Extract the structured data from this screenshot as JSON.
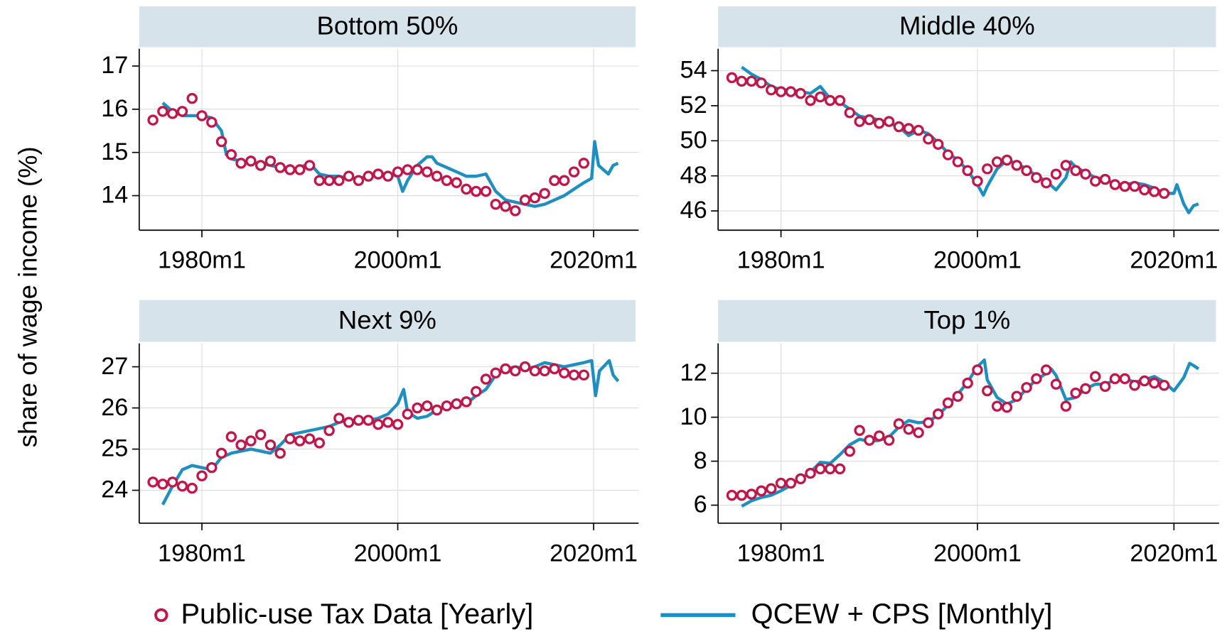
{
  "ylabel": "share of wage income (%)",
  "legend": [
    {
      "name": "Public-use Tax Data [Yearly]",
      "color": "#c0174a",
      "marker": "circle"
    },
    {
      "name": "QCEW + CPS [Monthly]",
      "color": "#1f8fbf",
      "marker": "line"
    }
  ],
  "chart_data": [
    {
      "type": "line",
      "title": "Bottom 50%",
      "xlim": [
        1973.6,
        2024.6
      ],
      "xticks": [
        {
          "value": 1980,
          "label": "1980m1"
        },
        {
          "value": 2000,
          "label": "2000m1"
        },
        {
          "value": 2020,
          "label": "2020m1"
        }
      ],
      "ylim": [
        13.2,
        17.4
      ],
      "yticks": [
        14,
        15,
        16,
        17
      ],
      "grid": true,
      "series": [
        {
          "x": [
            1975,
            1976,
            1977,
            1978,
            1979,
            1980,
            1981,
            1982,
            1983,
            1984,
            1985,
            1986,
            1987,
            1988,
            1989,
            1990,
            1991,
            1992,
            1993,
            1994,
            1995,
            1996,
            1997,
            1998,
            1999,
            2000,
            2001,
            2002,
            2003,
            2004,
            2005,
            2006,
            2007,
            2008,
            2009,
            2010,
            2011,
            2012,
            2013,
            2014,
            2015,
            2016,
            2017,
            2018,
            2019
          ],
          "values": [
            15.75,
            15.95,
            15.9,
            15.95,
            16.25,
            15.85,
            15.7,
            15.25,
            14.95,
            14.75,
            14.8,
            14.7,
            14.8,
            14.65,
            14.6,
            14.6,
            14.7,
            14.35,
            14.35,
            14.35,
            14.45,
            14.35,
            14.45,
            14.5,
            14.45,
            14.55,
            14.6,
            14.6,
            14.55,
            14.45,
            14.35,
            14.3,
            14.15,
            14.1,
            14.1,
            13.8,
            13.75,
            13.65,
            13.9,
            13.95,
            14.05,
            14.35,
            14.35,
            14.55,
            14.75
          ]
        },
        {
          "x": [
            1976,
            1977,
            1978,
            1979,
            1980,
            1981,
            1982,
            1982.5,
            1983,
            1984,
            1985,
            1986,
            1987,
            1988,
            1989,
            1990,
            1991,
            1992,
            1993,
            1994,
            1995,
            1996,
            1997,
            1998,
            1999,
            2000,
            2000.5,
            2001,
            2002,
            2003,
            2003.5,
            2004,
            2005,
            2006,
            2007,
            2008,
            2009,
            2010,
            2011,
            2012,
            2013,
            2014,
            2015,
            2016,
            2017,
            2018,
            2019,
            2019.8,
            2020.1,
            2020.5,
            2021,
            2021.5,
            2022,
            2022.5
          ],
          "values": [
            16.15,
            15.95,
            15.85,
            15.85,
            15.85,
            15.8,
            15.5,
            14.95,
            14.85,
            14.8,
            14.75,
            14.75,
            14.7,
            14.65,
            14.6,
            14.65,
            14.75,
            14.5,
            14.45,
            14.45,
            14.4,
            14.4,
            14.45,
            14.5,
            14.5,
            14.45,
            14.1,
            14.35,
            14.7,
            14.9,
            14.9,
            14.75,
            14.65,
            14.55,
            14.45,
            14.45,
            14.5,
            14.1,
            13.9,
            13.85,
            13.8,
            13.75,
            13.8,
            13.9,
            14.0,
            14.15,
            14.3,
            14.4,
            15.25,
            14.7,
            14.6,
            14.5,
            14.7,
            14.75
          ]
        }
      ]
    },
    {
      "type": "line",
      "title": "Middle 40%",
      "xlim": [
        1973.6,
        2024.6
      ],
      "xticks": [
        {
          "value": 1980,
          "label": "1980m1"
        },
        {
          "value": 2000,
          "label": "2000m1"
        },
        {
          "value": 2020,
          "label": "2020m1"
        }
      ],
      "ylim": [
        44.9,
        55.25
      ],
      "yticks": [
        46,
        48,
        50,
        52,
        54
      ],
      "grid": true,
      "series": [
        {
          "x": [
            1975,
            1976,
            1977,
            1978,
            1979,
            1980,
            1981,
            1982,
            1983,
            1984,
            1985,
            1986,
            1987,
            1988,
            1989,
            1990,
            1991,
            1992,
            1993,
            1994,
            1995,
            1996,
            1997,
            1998,
            1999,
            2000,
            2001,
            2002,
            2003,
            2004,
            2005,
            2006,
            2007,
            2008,
            2009,
            2010,
            2011,
            2012,
            2013,
            2014,
            2015,
            2016,
            2017,
            2018,
            2019
          ],
          "values": [
            53.6,
            53.4,
            53.4,
            53.3,
            52.9,
            52.8,
            52.8,
            52.7,
            52.3,
            52.5,
            52.3,
            52.3,
            51.6,
            51.1,
            51.2,
            51.0,
            51.1,
            50.8,
            50.7,
            50.6,
            50.1,
            49.8,
            49.2,
            48.8,
            48.3,
            47.7,
            48.4,
            48.8,
            48.9,
            48.6,
            48.3,
            47.9,
            47.6,
            48.1,
            48.6,
            48.3,
            48.1,
            47.7,
            47.8,
            47.5,
            47.4,
            47.4,
            47.2,
            47.1,
            47.0
          ]
        },
        {
          "x": [
            1976,
            1977,
            1978,
            1979,
            1980,
            1981,
            1982,
            1983,
            1984,
            1985,
            1986,
            1987,
            1988,
            1989,
            1990,
            1991,
            1992,
            1993,
            1994,
            1995,
            1996,
            1997,
            1998,
            1999,
            2000,
            2000.6,
            2001,
            2002,
            2003,
            2004,
            2005,
            2006,
            2007,
            2008,
            2009,
            2009.5,
            2010,
            2011,
            2012,
            2013,
            2014,
            2015,
            2016,
            2017,
            2018,
            2019,
            2020,
            2020.3,
            2021,
            2021.5,
            2022,
            2022.5
          ],
          "values": [
            54.2,
            53.8,
            53.5,
            53.1,
            52.9,
            52.9,
            52.8,
            52.7,
            53.1,
            52.4,
            52.2,
            51.8,
            51.4,
            51.3,
            51.2,
            51.0,
            50.8,
            50.3,
            50.6,
            50.4,
            49.9,
            49.3,
            48.9,
            48.3,
            47.5,
            46.9,
            47.4,
            48.4,
            48.9,
            48.7,
            48.4,
            48.0,
            47.7,
            47.2,
            47.9,
            48.8,
            48.5,
            48.2,
            47.9,
            47.8,
            47.5,
            47.5,
            47.6,
            47.5,
            47.3,
            47.0,
            47.0,
            47.5,
            46.4,
            45.9,
            46.3,
            46.4
          ]
        }
      ]
    },
    {
      "type": "line",
      "title": "Next 9%",
      "xlim": [
        1973.6,
        2024.6
      ],
      "xticks": [
        {
          "value": 1980,
          "label": "1980m1"
        },
        {
          "value": 2000,
          "label": "2000m1"
        },
        {
          "value": 2020,
          "label": "2020m1"
        }
      ],
      "ylim": [
        23.2,
        27.57
      ],
      "yticks": [
        24,
        25,
        26,
        27
      ],
      "grid": true,
      "series": [
        {
          "x": [
            1975,
            1976,
            1977,
            1978,
            1979,
            1980,
            1981,
            1982,
            1983,
            1984,
            1985,
            1986,
            1987,
            1988,
            1989,
            1990,
            1991,
            1992,
            1993,
            1994,
            1995,
            1996,
            1997,
            1998,
            1999,
            2000,
            2001,
            2002,
            2003,
            2004,
            2005,
            2006,
            2007,
            2008,
            2009,
            2010,
            2011,
            2012,
            2013,
            2014,
            2015,
            2016,
            2017,
            2018,
            2019
          ],
          "values": [
            24.2,
            24.15,
            24.2,
            24.1,
            24.05,
            24.35,
            24.55,
            24.9,
            25.3,
            25.1,
            25.2,
            25.35,
            25.1,
            24.9,
            25.25,
            25.2,
            25.25,
            25.15,
            25.45,
            25.75,
            25.65,
            25.7,
            25.7,
            25.6,
            25.65,
            25.6,
            25.85,
            26.0,
            26.05,
            25.95,
            26.05,
            26.1,
            26.15,
            26.4,
            26.7,
            26.85,
            26.95,
            26.9,
            27.0,
            26.9,
            26.9,
            26.95,
            26.85,
            26.8,
            26.8
          ]
        },
        {
          "x": [
            1976,
            1977,
            1978,
            1979,
            1980,
            1981,
            1982,
            1983,
            1984,
            1985,
            1986,
            1987,
            1988,
            1989,
            1990,
            1991,
            1992,
            1993,
            1994,
            1995,
            1996,
            1997,
            1998,
            1999,
            2000,
            2000.6,
            2001,
            2002,
            2003,
            2004,
            2005,
            2006,
            2007,
            2008,
            2009,
            2010,
            2011,
            2012,
            2013,
            2014,
            2015,
            2016,
            2017,
            2018,
            2019,
            2019.8,
            2020.2,
            2020.6,
            2021,
            2021.6,
            2022,
            2022.5
          ],
          "values": [
            23.65,
            24.1,
            24.5,
            24.6,
            24.55,
            24.5,
            24.8,
            24.9,
            24.95,
            25.0,
            24.95,
            24.9,
            25.1,
            25.35,
            25.4,
            25.45,
            25.5,
            25.55,
            25.65,
            25.7,
            25.65,
            25.7,
            25.75,
            25.85,
            26.1,
            26.45,
            25.9,
            25.75,
            25.8,
            25.95,
            26.05,
            26.1,
            26.1,
            26.3,
            26.45,
            26.8,
            26.95,
            27.0,
            26.95,
            27.0,
            27.1,
            27.05,
            27.0,
            27.05,
            27.1,
            27.15,
            26.3,
            26.9,
            27.0,
            27.15,
            26.8,
            26.65
          ]
        }
      ]
    },
    {
      "type": "line",
      "title": "Top 1%",
      "xlim": [
        1973.6,
        2024.6
      ],
      "xticks": [
        {
          "value": 1980,
          "label": "1980m1"
        },
        {
          "value": 2000,
          "label": "2000m1"
        },
        {
          "value": 2020,
          "label": "2020m1"
        }
      ],
      "ylim": [
        5.18,
        13.36
      ],
      "yticks": [
        6,
        8,
        10,
        12
      ],
      "grid": true,
      "series": [
        {
          "x": [
            1975,
            1976,
            1977,
            1978,
            1979,
            1980,
            1981,
            1982,
            1983,
            1984,
            1985,
            1986,
            1987,
            1988,
            1989,
            1990,
            1991,
            1992,
            1993,
            1994,
            1995,
            1996,
            1997,
            1998,
            1999,
            2000,
            2001,
            2002,
            2003,
            2004,
            2005,
            2006,
            2007,
            2008,
            2009,
            2010,
            2011,
            2012,
            2013,
            2014,
            2015,
            2016,
            2017,
            2018,
            2019
          ],
          "values": [
            6.45,
            6.45,
            6.5,
            6.65,
            6.75,
            7.0,
            7.0,
            7.2,
            7.45,
            7.65,
            7.65,
            7.65,
            8.45,
            9.4,
            8.95,
            9.15,
            8.95,
            9.7,
            9.45,
            9.3,
            9.75,
            10.15,
            10.65,
            10.95,
            11.55,
            12.15,
            11.2,
            10.5,
            10.45,
            10.95,
            11.35,
            11.75,
            12.15,
            11.5,
            10.5,
            11.1,
            11.3,
            11.85,
            11.4,
            11.75,
            11.75,
            11.45,
            11.65,
            11.55,
            11.45
          ]
        },
        {
          "x": [
            1976,
            1977,
            1978,
            1979,
            1980,
            1981,
            1982,
            1983,
            1984,
            1985,
            1986,
            1987,
            1988,
            1989,
            1990,
            1991,
            1992,
            1993,
            1994,
            1995,
            1996,
            1997,
            1998,
            1999,
            2000,
            2000.7,
            2001,
            2002,
            2003,
            2004,
            2005,
            2006,
            2007,
            2007.5,
            2008,
            2009,
            2010,
            2011,
            2012,
            2013,
            2014,
            2015,
            2016,
            2017,
            2018,
            2019,
            2020,
            2021,
            2021.6,
            2022,
            2022.5
          ],
          "values": [
            5.95,
            6.2,
            6.35,
            6.45,
            6.65,
            6.9,
            7.2,
            7.5,
            7.95,
            7.9,
            8.3,
            8.75,
            9.0,
            8.9,
            8.95,
            9.1,
            9.55,
            9.85,
            9.75,
            9.8,
            10.1,
            10.55,
            11.05,
            11.6,
            12.3,
            12.6,
            11.7,
            10.9,
            10.6,
            10.8,
            11.3,
            11.7,
            12.0,
            12.2,
            11.9,
            10.8,
            10.9,
            11.3,
            11.5,
            11.5,
            11.7,
            11.75,
            11.6,
            11.7,
            11.85,
            11.6,
            11.2,
            11.8,
            12.45,
            12.35,
            12.2
          ]
        }
      ]
    }
  ]
}
